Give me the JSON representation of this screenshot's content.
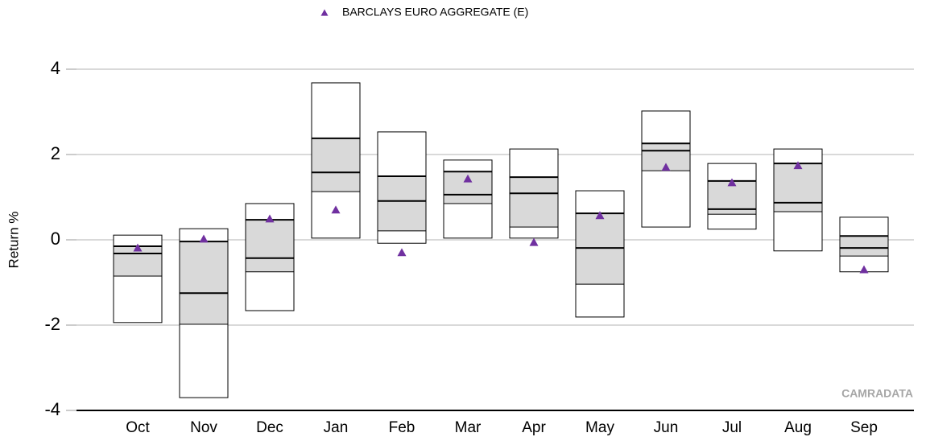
{
  "chart_data": {
    "type": "box",
    "ylabel": "Return %",
    "watermark": "CAMRADATA",
    "categories": [
      "Oct",
      "Nov",
      "Dec",
      "Jan",
      "Feb",
      "Mar",
      "Apr",
      "May",
      "Jun",
      "Jul",
      "Aug",
      "Sep"
    ],
    "boxes": {
      "max": [
        0.11,
        0.26,
        0.85,
        3.68,
        2.53,
        1.87,
        2.13,
        1.15,
        3.02,
        1.79,
        2.13,
        0.53
      ],
      "q3": [
        -0.15,
        -0.04,
        0.47,
        2.38,
        1.49,
        1.6,
        1.47,
        0.62,
        2.26,
        1.38,
        1.79,
        0.09
      ],
      "median": [
        -0.32,
        -1.25,
        -0.43,
        1.58,
        0.91,
        1.06,
        1.09,
        -0.19,
        2.09,
        0.72,
        0.87,
        -0.19
      ],
      "q1": [
        -0.85,
        -1.98,
        -0.75,
        1.13,
        0.21,
        0.85,
        0.3,
        -1.04,
        1.62,
        0.6,
        0.66,
        -0.38
      ],
      "min": [
        -1.94,
        -3.7,
        -1.66,
        0.04,
        -0.08,
        0.04,
        0.04,
        -1.81,
        0.3,
        0.25,
        -0.26,
        -0.75
      ],
      "color": "#d9d9d9"
    },
    "series": [
      {
        "name": "BARCLAYS EURO AGGREGATE (E)",
        "color": "#7030a0",
        "values": [
          -0.19,
          0.02,
          0.49,
          0.7,
          -0.3,
          1.43,
          -0.06,
          0.57,
          1.7,
          1.34,
          1.74,
          -0.7
        ]
      }
    ],
    "ylim": [
      -4,
      4
    ],
    "yticks": [
      -4,
      -2,
      0,
      2,
      4
    ],
    "grid": true,
    "legend": "top"
  }
}
